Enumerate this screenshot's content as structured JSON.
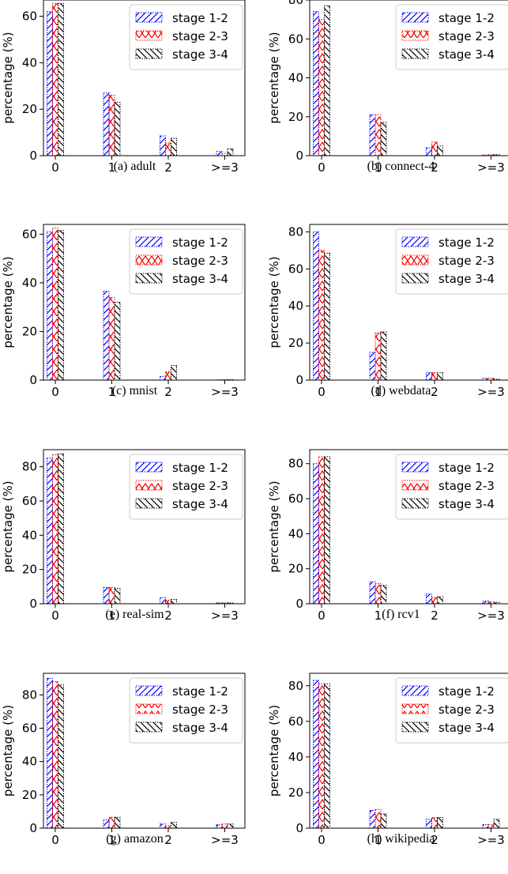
{
  "colors": {
    "stage_1_2": "#0000ff",
    "stage_2_3": "#ff0000",
    "stage_3_4": "#000000"
  },
  "chart_data": [
    {
      "type": "bar",
      "caption": "(a) adult",
      "categories": [
        "0",
        "1",
        "2",
        ">=3"
      ],
      "ylabel": "percentage (%)",
      "ylim": [
        0,
        67
      ],
      "yticks": [
        0,
        20,
        40,
        60
      ],
      "grid": false,
      "legend_position": "top-right",
      "series": [
        {
          "name": "stage 1-2",
          "values": [
            62,
            27,
            8.5,
            1.8
          ]
        },
        {
          "name": "stage 2-3",
          "values": [
            65.5,
            26,
            5.5,
            1
          ]
        },
        {
          "name": "stage 3-4",
          "values": [
            65.5,
            23,
            7.5,
            3
          ]
        }
      ]
    },
    {
      "type": "bar",
      "caption": "(b) connect-4",
      "categories": [
        "0",
        "1",
        "2",
        ">=3"
      ],
      "ylabel": "percentage (%)",
      "ylim": [
        0,
        80
      ],
      "yticks": [
        0,
        20,
        40,
        60,
        80
      ],
      "grid": false,
      "legend_position": "top-right",
      "series": [
        {
          "name": "stage 1-2",
          "values": [
            74,
            21,
            4,
            0.3
          ]
        },
        {
          "name": "stage 2-3",
          "values": [
            70,
            21,
            7,
            0.5
          ]
        },
        {
          "name": "stage 3-4",
          "values": [
            77,
            17,
            5,
            0.5
          ]
        }
      ]
    },
    {
      "type": "bar",
      "caption": "(c) mnist",
      "categories": [
        "0",
        "1",
        "2",
        ">=3"
      ],
      "ylabel": "percentage (%)",
      "ylim": [
        0,
        64
      ],
      "yticks": [
        0,
        20,
        40,
        60
      ],
      "grid": false,
      "legend_position": "top-right",
      "series": [
        {
          "name": "stage 1-2",
          "values": [
            61,
            36.5,
            1.5,
            0.1
          ]
        },
        {
          "name": "stage 2-3",
          "values": [
            62.5,
            34,
            3.5,
            0.2
          ]
        },
        {
          "name": "stage 3-4",
          "values": [
            61.5,
            32,
            6,
            0.2
          ]
        }
      ]
    },
    {
      "type": "bar",
      "caption": "(d) webdata",
      "categories": [
        "0",
        "1",
        "2",
        ">=3"
      ],
      "ylabel": "percentage (%)",
      "ylim": [
        0,
        84
      ],
      "yticks": [
        0,
        20,
        40,
        60,
        80
      ],
      "grid": false,
      "legend_position": "top-right",
      "series": [
        {
          "name": "stage 1-2",
          "values": [
            80,
            15,
            4,
            1
          ]
        },
        {
          "name": "stage 2-3",
          "values": [
            70,
            25.5,
            4,
            1
          ]
        },
        {
          "name": "stage 3-4",
          "values": [
            68.5,
            26,
            4,
            0.5
          ]
        }
      ]
    },
    {
      "type": "bar",
      "caption": "(e) real-sim",
      "categories": [
        "0",
        "1",
        "2",
        ">=3"
      ],
      "ylabel": "percentage (%)",
      "ylim": [
        0,
        90
      ],
      "yticks": [
        0,
        20,
        40,
        60,
        80
      ],
      "grid": false,
      "legend_position": "top-right",
      "series": [
        {
          "name": "stage 1-2",
          "values": [
            85,
            9.5,
            3.5,
            0.5
          ]
        },
        {
          "name": "stage 2-3",
          "values": [
            87,
            9.5,
            2,
            0.5
          ]
        },
        {
          "name": "stage 3-4",
          "values": [
            87.5,
            9,
            2.5,
            0.5
          ]
        }
      ]
    },
    {
      "type": "bar",
      "caption": "(f) rcv1",
      "categories": [
        "0",
        "1",
        "2",
        ">=3"
      ],
      "ylabel": "percentage (%)",
      "ylim": [
        0,
        88
      ],
      "yticks": [
        0,
        20,
        40,
        60,
        80
      ],
      "grid": false,
      "legend_position": "top-right",
      "series": [
        {
          "name": "stage 1-2",
          "values": [
            80,
            12.5,
            5.5,
            1.5
          ]
        },
        {
          "name": "stage 2-3",
          "values": [
            84,
            11.5,
            3.5,
            1
          ]
        },
        {
          "name": "stage 3-4",
          "values": [
            84,
            10.5,
            4,
            0.8
          ]
        }
      ]
    },
    {
      "type": "bar",
      "caption": "(g) amazon",
      "categories": [
        "0",
        "1",
        "2",
        ">=3"
      ],
      "ylabel": "percentage (%)",
      "ylim": [
        0,
        93
      ],
      "yticks": [
        0,
        20,
        40,
        60,
        80
      ],
      "grid": false,
      "legend_position": "top-right",
      "series": [
        {
          "name": "stage 1-2",
          "values": [
            90,
            5,
            2.5,
            2
          ]
        },
        {
          "name": "stage 2-3",
          "values": [
            88,
            6.5,
            1.5,
            2.5
          ]
        },
        {
          "name": "stage 3-4",
          "values": [
            86,
            6.5,
            3.5,
            2.5
          ]
        }
      ]
    },
    {
      "type": "bar",
      "caption": "(h) wikipedia",
      "categories": [
        "0",
        "1",
        "2",
        ">=3"
      ],
      "ylabel": "percentage (%)",
      "ylim": [
        0,
        87
      ],
      "yticks": [
        0,
        20,
        40,
        60,
        80
      ],
      "grid": false,
      "legend_position": "top-right",
      "series": [
        {
          "name": "stage 1-2",
          "values": [
            83,
            10,
            5,
            2
          ]
        },
        {
          "name": "stage 2-3",
          "values": [
            81,
            10.5,
            6,
            2
          ]
        },
        {
          "name": "stage 3-4",
          "values": [
            81,
            8,
            6,
            5
          ]
        }
      ]
    }
  ]
}
